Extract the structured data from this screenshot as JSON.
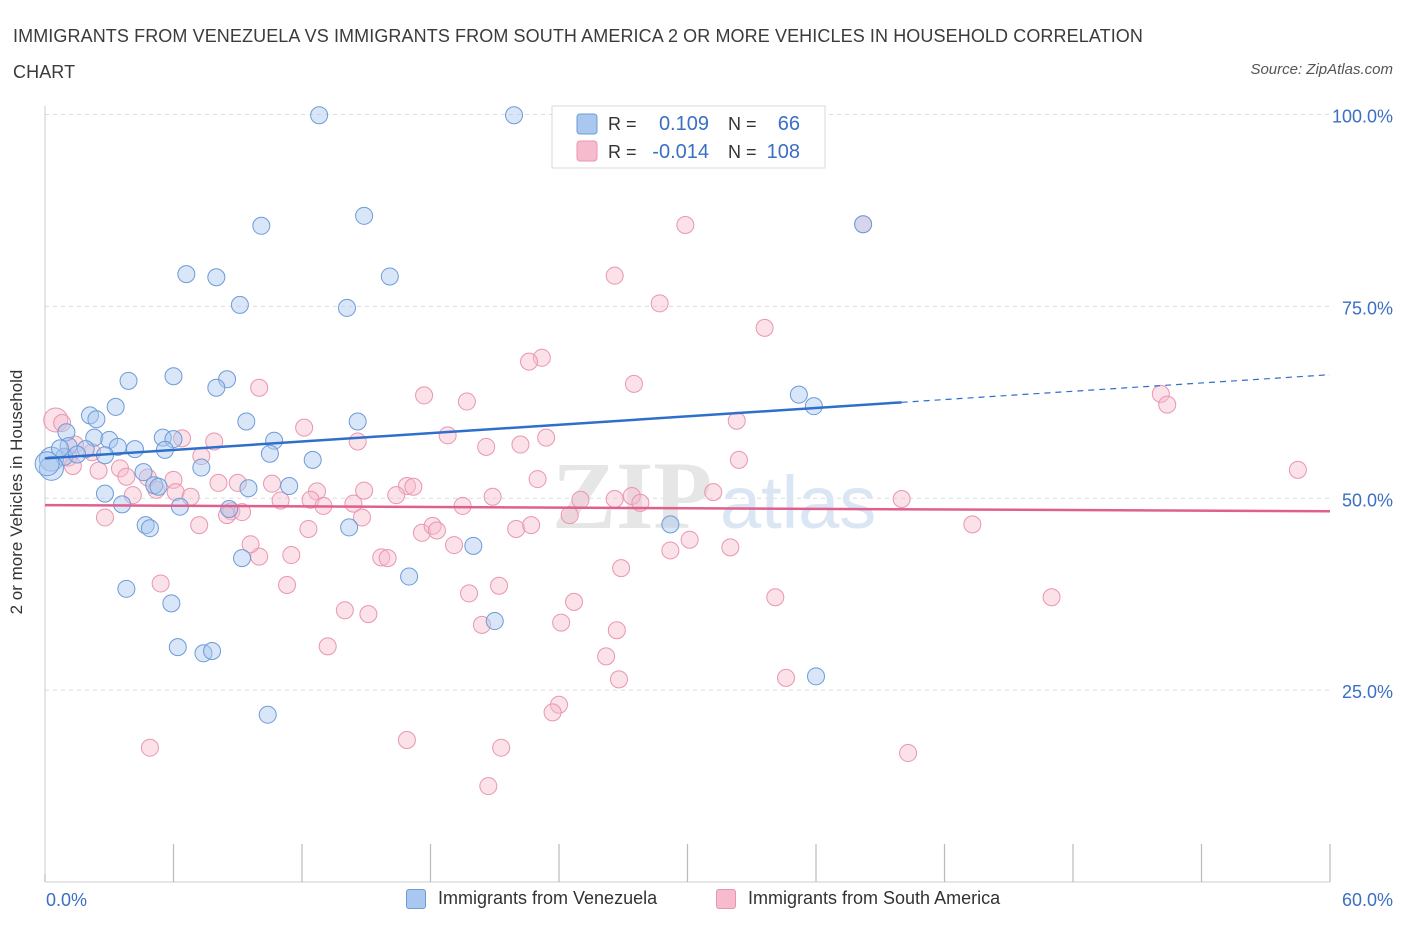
{
  "title": "IMMIGRANTS FROM VENEZUELA VS IMMIGRANTS FROM SOUTH AMERICA 2 OR MORE VEHICLES IN HOUSEHOLD CORRELATION CHART",
  "source": "Source: ZipAtlas.com",
  "watermark": "ZIPatlas",
  "colors": {
    "blue_fill": "#a9c7ef",
    "blue_stroke": "#6d9bd8",
    "blue_line": "#2f6fcc",
    "pink_fill": "#f6bccd",
    "pink_stroke": "#e996b1",
    "pink_line": "#e0608d",
    "axis_text": "#3a6fc4",
    "grid": "#dcdcdc"
  },
  "legend": {
    "rows": [
      {
        "r_label": "R =",
        "r_value": "0.109",
        "n_label": "N =",
        "n_value": "66",
        "series": "blue"
      },
      {
        "r_label": "R =",
        "r_value": "-0.014",
        "n_label": "N =",
        "n_value": "108",
        "series": "pink"
      }
    ]
  },
  "bottom_legend": [
    {
      "label": "Immigrants from Venezuela",
      "series": "blue"
    },
    {
      "label": "Immigrants from South America",
      "series": "pink"
    }
  ],
  "chart_data": {
    "type": "scatter",
    "title": "IMMIGRANTS FROM VENEZUELA VS IMMIGRANTS FROM SOUTH AMERICA 2 OR MORE VEHICLES IN HOUSEHOLD CORRELATION CHART",
    "xlabel": "",
    "ylabel": "2 or more Vehicles in Household",
    "x_tick_labels": [
      "0.0%",
      "60.0%"
    ],
    "y_tick_labels": [
      "100.0%",
      "75.0%",
      "50.0%",
      "25.0%"
    ],
    "xlim": [
      0,
      60
    ],
    "ylim": [
      0,
      101.5
    ],
    "grid": true,
    "legend_position": "top-center",
    "series": [
      {
        "name": "Immigrants from Venezuela",
        "color": "#6d9bd8",
        "R": 0.109,
        "N": 66,
        "trend": {
          "x": [
            0,
            40
          ],
          "y": [
            55.2,
            62.5
          ],
          "dashed_to": [
            60,
            66.1
          ]
        },
        "points": [
          [
            12.8,
            99.9
          ],
          [
            21.9,
            99.9
          ],
          [
            10.1,
            85.5
          ],
          [
            14.9,
            86.8
          ],
          [
            38.2,
            85.7
          ],
          [
            6.6,
            79.2
          ],
          [
            8.0,
            78.8
          ],
          [
            16.1,
            78.9
          ],
          [
            9.1,
            75.2
          ],
          [
            14.1,
            74.8
          ],
          [
            3.9,
            65.3
          ],
          [
            6.0,
            65.9
          ],
          [
            8.5,
            65.5
          ],
          [
            8.0,
            64.4
          ],
          [
            35.2,
            63.5
          ],
          [
            35.9,
            62.0
          ],
          [
            3.3,
            61.9
          ],
          [
            2.1,
            60.8
          ],
          [
            2.4,
            60.3
          ],
          [
            9.4,
            60.0
          ],
          [
            14.6,
            60.0
          ],
          [
            1.0,
            58.6
          ],
          [
            2.3,
            57.9
          ],
          [
            3.0,
            57.6
          ],
          [
            5.5,
            57.9
          ],
          [
            6.0,
            57.7
          ],
          [
            10.7,
            57.5
          ],
          [
            1.1,
            56.8
          ],
          [
            1.9,
            56.4
          ],
          [
            3.4,
            56.7
          ],
          [
            4.2,
            56.4
          ],
          [
            5.6,
            56.3
          ],
          [
            0.3,
            55.1
          ],
          [
            0.9,
            55.4
          ],
          [
            2.8,
            55.6
          ],
          [
            10.5,
            55.8
          ],
          [
            0.3,
            53.9
          ],
          [
            7.3,
            54.0
          ],
          [
            4.6,
            53.4
          ],
          [
            5.1,
            51.7
          ],
          [
            5.3,
            51.5
          ],
          [
            11.4,
            51.6
          ],
          [
            9.5,
            51.3
          ],
          [
            2.8,
            50.6
          ],
          [
            3.6,
            49.2
          ],
          [
            6.3,
            48.9
          ],
          [
            8.6,
            48.6
          ],
          [
            4.7,
            46.5
          ],
          [
            4.9,
            46.1
          ],
          [
            14.2,
            46.2
          ],
          [
            29.2,
            46.6
          ],
          [
            20.0,
            43.8
          ],
          [
            9.2,
            42.2
          ],
          [
            17.0,
            39.8
          ],
          [
            3.8,
            38.2
          ],
          [
            5.9,
            36.3
          ],
          [
            21.0,
            34.0
          ],
          [
            6.2,
            30.6
          ],
          [
            7.4,
            29.8
          ],
          [
            7.8,
            30.1
          ],
          [
            10.4,
            21.8
          ],
          [
            36.0,
            26.8
          ],
          [
            0.1,
            54.5
          ],
          [
            1.5,
            55.7
          ],
          [
            0.7,
            56.5
          ],
          [
            12.5,
            55.0
          ]
        ]
      },
      {
        "name": "Immigrants from South America",
        "color": "#e996b1",
        "R": -0.014,
        "N": 108,
        "trend": {
          "x": [
            0,
            60
          ],
          "y": [
            49.1,
            48.3
          ]
        },
        "points": [
          [
            29.9,
            85.6
          ],
          [
            38.2,
            85.7
          ],
          [
            26.6,
            79.0
          ],
          [
            28.7,
            75.4
          ],
          [
            33.6,
            72.2
          ],
          [
            23.2,
            68.3
          ],
          [
            22.6,
            67.8
          ],
          [
            27.5,
            64.9
          ],
          [
            10.0,
            64.4
          ],
          [
            17.7,
            63.4
          ],
          [
            19.7,
            62.6
          ],
          [
            52.1,
            63.6
          ],
          [
            52.4,
            62.2
          ],
          [
            32.3,
            60.1
          ],
          [
            12.1,
            59.2
          ],
          [
            18.8,
            58.2
          ],
          [
            23.4,
            57.9
          ],
          [
            6.4,
            57.8
          ],
          [
            7.9,
            57.4
          ],
          [
            14.6,
            57.4
          ],
          [
            20.6,
            56.7
          ],
          [
            22.2,
            57.0
          ],
          [
            7.3,
            55.5
          ],
          [
            32.4,
            55.0
          ],
          [
            1.1,
            55.3
          ],
          [
            3.5,
            53.9
          ],
          [
            2.5,
            53.6
          ],
          [
            1.3,
            54.2
          ],
          [
            4.8,
            52.7
          ],
          [
            6.0,
            52.4
          ],
          [
            3.8,
            52.8
          ],
          [
            8.1,
            52.0
          ],
          [
            9.0,
            52.0
          ],
          [
            10.6,
            51.9
          ],
          [
            16.9,
            51.6
          ],
          [
            17.2,
            51.5
          ],
          [
            5.2,
            51.1
          ],
          [
            6.1,
            50.8
          ],
          [
            12.7,
            50.9
          ],
          [
            14.9,
            51.0
          ],
          [
            16.4,
            50.4
          ],
          [
            20.9,
            50.2
          ],
          [
            27.4,
            50.3
          ],
          [
            11.0,
            49.7
          ],
          [
            12.4,
            49.8
          ],
          [
            14.4,
            49.3
          ],
          [
            27.8,
            49.4
          ],
          [
            40.0,
            49.9
          ],
          [
            58.5,
            53.7
          ],
          [
            8.7,
            48.3
          ],
          [
            8.5,
            47.8
          ],
          [
            9.2,
            48.2
          ],
          [
            14.8,
            47.5
          ],
          [
            24.5,
            47.8
          ],
          [
            7.2,
            46.5
          ],
          [
            12.3,
            46.0
          ],
          [
            17.6,
            45.5
          ],
          [
            18.1,
            46.4
          ],
          [
            22.0,
            46.0
          ],
          [
            30.1,
            44.6
          ],
          [
            18.3,
            45.8
          ],
          [
            19.1,
            43.9
          ],
          [
            32.0,
            43.6
          ],
          [
            43.3,
            46.6
          ],
          [
            10.0,
            42.4
          ],
          [
            11.5,
            42.6
          ],
          [
            15.7,
            42.3
          ],
          [
            16.0,
            42.2
          ],
          [
            26.9,
            40.9
          ],
          [
            5.4,
            38.9
          ],
          [
            11.3,
            38.7
          ],
          [
            21.2,
            38.6
          ],
          [
            19.8,
            37.6
          ],
          [
            24.7,
            36.5
          ],
          [
            34.1,
            37.1
          ],
          [
            47.0,
            37.1
          ],
          [
            14.0,
            35.4
          ],
          [
            15.1,
            34.9
          ],
          [
            24.1,
            33.8
          ],
          [
            20.4,
            33.5
          ],
          [
            26.7,
            32.8
          ],
          [
            13.2,
            30.7
          ],
          [
            26.2,
            29.4
          ],
          [
            26.8,
            26.4
          ],
          [
            34.6,
            26.6
          ],
          [
            24.0,
            23.1
          ],
          [
            23.7,
            22.1
          ],
          [
            16.9,
            18.5
          ],
          [
            21.3,
            17.5
          ],
          [
            4.9,
            17.5
          ],
          [
            40.3,
            16.8
          ],
          [
            20.7,
            12.5
          ],
          [
            0.5,
            60.2
          ],
          [
            0.8,
            59.8
          ],
          [
            1.4,
            57.0
          ],
          [
            2.2,
            56.0
          ],
          [
            26.6,
            49.9
          ],
          [
            22.7,
            46.5
          ],
          [
            25.0,
            49.8
          ],
          [
            6.8,
            50.2
          ],
          [
            13.0,
            49.0
          ],
          [
            4.1,
            50.4
          ],
          [
            19.5,
            49.0
          ],
          [
            9.6,
            44.0
          ],
          [
            31.2,
            50.8
          ],
          [
            2.8,
            47.5
          ],
          [
            29.2,
            43.2
          ],
          [
            23.0,
            52.5
          ]
        ]
      }
    ]
  }
}
